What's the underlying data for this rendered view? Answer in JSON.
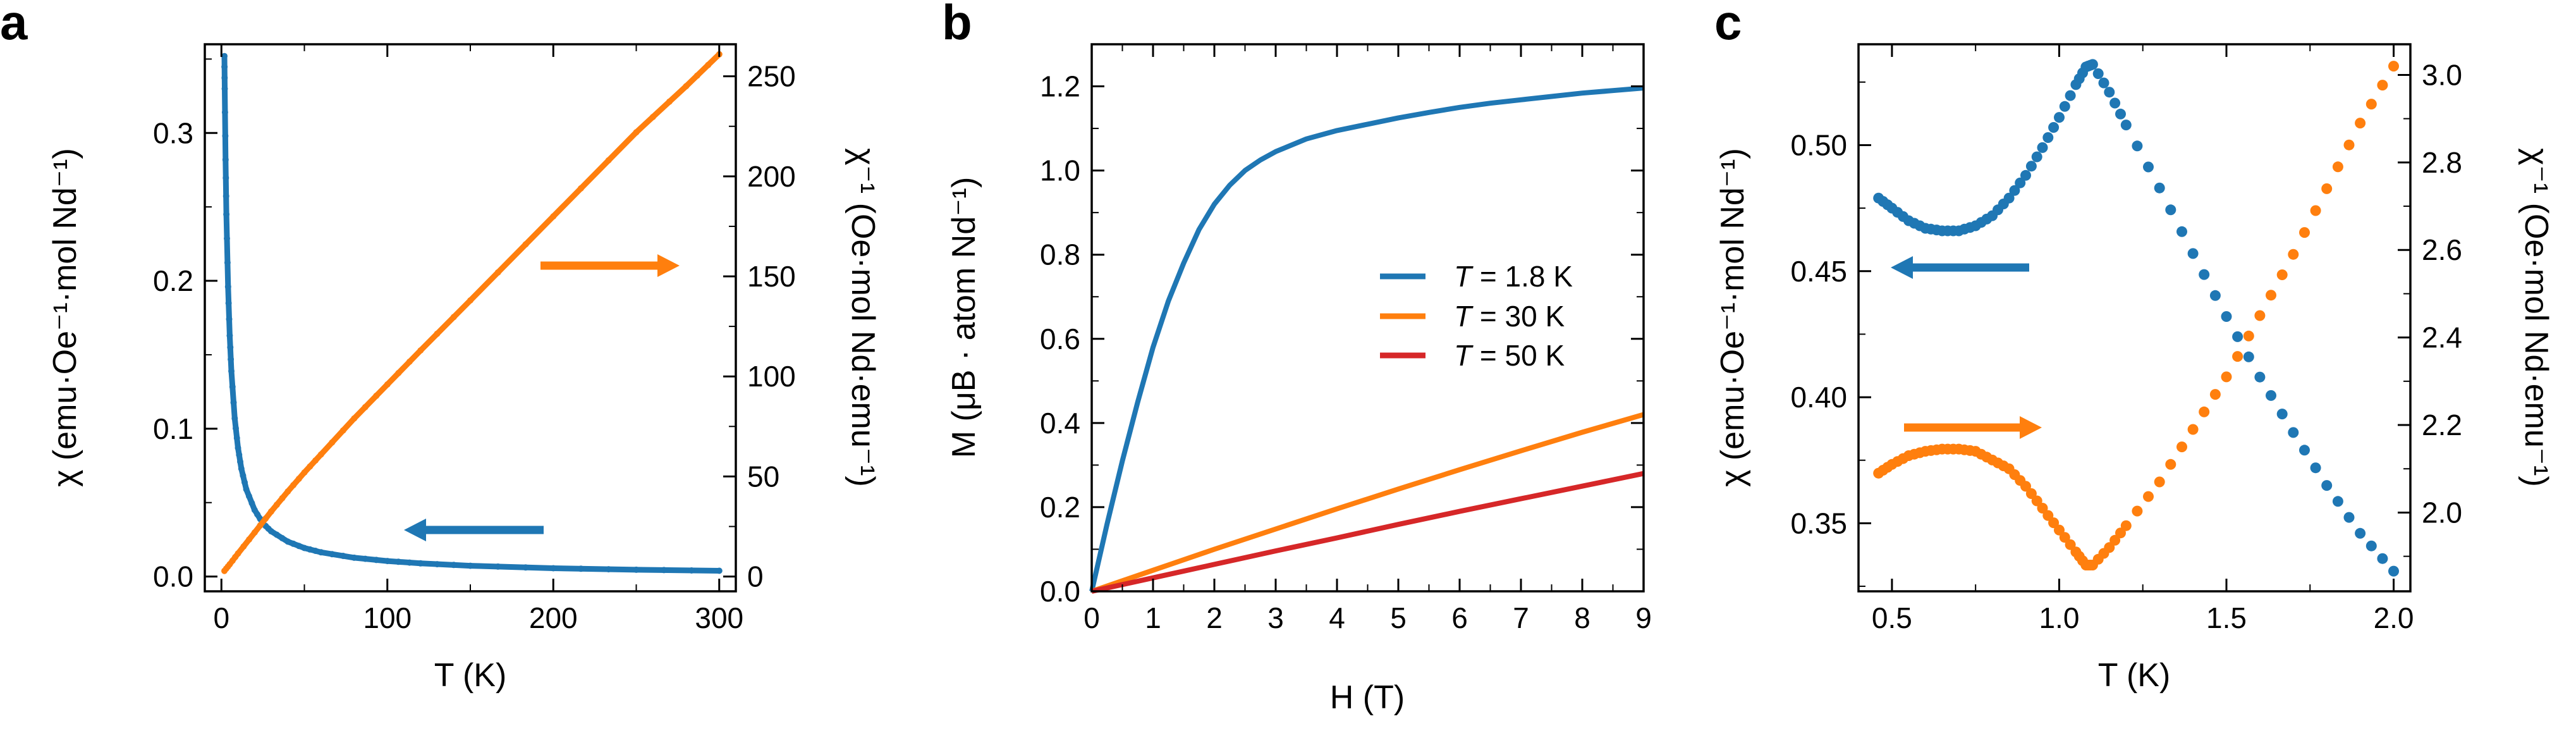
{
  "chart_data": [
    {
      "panel": "a",
      "type": "line",
      "xlabel": "T (K)",
      "ylabel": "χ (emu·Oe⁻¹·mol Nd⁻¹)",
      "ylabel_right": "χ⁻¹ (Oe·mol Nd·emu⁻¹)",
      "xlim": [
        -10,
        310
      ],
      "ylim": [
        -0.01,
        0.36
      ],
      "ylim_right": [
        -7.4,
        266
      ],
      "xticks": [
        0,
        100,
        200,
        300
      ],
      "yticks": [
        0.0,
        0.1,
        0.2,
        0.3
      ],
      "yticks_right": [
        0,
        50,
        100,
        150,
        200,
        250
      ],
      "ytick_labels": [
        "0.0",
        "0.1",
        "0.2",
        "0.3"
      ],
      "series": [
        {
          "name": "χ",
          "axis": "left",
          "color": "#1f77b4",
          "x": [
            1.8,
            2,
            2.5,
            3,
            4,
            5,
            6,
            8,
            10,
            12,
            15,
            20,
            25,
            30,
            40,
            50,
            60,
            80,
            100,
            120,
            150,
            200,
            250,
            300
          ],
          "y": [
            0.352,
            0.33,
            0.282,
            0.245,
            0.196,
            0.163,
            0.139,
            0.107,
            0.087,
            0.073,
            0.059,
            0.045,
            0.036,
            0.0306,
            0.0236,
            0.0193,
            0.0164,
            0.0127,
            0.0105,
            0.0089,
            0.0073,
            0.0056,
            0.0046,
            0.0039
          ]
        },
        {
          "name": "χ⁻¹",
          "axis": "right",
          "color": "#ff7f0e",
          "x": [
            1.8,
            5,
            10,
            20,
            30,
            40,
            50,
            60,
            80,
            100,
            120,
            150,
            200,
            250,
            280,
            300
          ],
          "y": [
            2.8,
            6.1,
            11.5,
            22,
            32.5,
            42.5,
            52,
            61,
            79,
            96,
            113,
            138,
            180,
            222,
            245,
            261
          ]
        }
      ],
      "annotations": [
        {
          "label": "arrow-right-axis",
          "points_to": "right",
          "color": "#ff7f0e"
        },
        {
          "label": "arrow-left-axis",
          "points_to": "left",
          "color": "#1f77b4"
        }
      ]
    },
    {
      "panel": "b",
      "type": "line",
      "xlabel": "H (T)",
      "ylabel": "M (μB · atom Nd⁻¹)",
      "xlim": [
        0,
        9
      ],
      "ylim": [
        0,
        1.3
      ],
      "xticks": [
        0,
        1,
        2,
        3,
        4,
        5,
        6,
        7,
        8,
        9
      ],
      "yticks": [
        0.0,
        0.2,
        0.4,
        0.6,
        0.8,
        1.0,
        1.2
      ],
      "ytick_labels": [
        "0.0",
        "0.2",
        "0.4",
        "0.6",
        "0.8",
        "1.0",
        "1.2"
      ],
      "legend": {
        "location": "center-right",
        "entries": [
          {
            "prefix": "T",
            "text": " = 1.8 K",
            "color": "#1f77b4"
          },
          {
            "prefix": "T",
            "text": " = 30 K",
            "color": "#ff7f0e"
          },
          {
            "prefix": "T",
            "text": " = 50 K",
            "color": "#d62728"
          }
        ]
      },
      "series": [
        {
          "name": "T = 1.8 K",
          "color": "#1f77b4",
          "x": [
            0,
            0.25,
            0.5,
            0.75,
            1.0,
            1.25,
            1.5,
            1.75,
            2.0,
            2.25,
            2.5,
            2.75,
            3.0,
            3.5,
            4.0,
            4.5,
            5.0,
            5.5,
            6.0,
            6.5,
            7.0,
            7.5,
            8.0,
            8.5,
            9.0
          ],
          "y": [
            0,
            0.16,
            0.31,
            0.45,
            0.58,
            0.69,
            0.78,
            0.86,
            0.92,
            0.965,
            1.0,
            1.025,
            1.045,
            1.075,
            1.095,
            1.11,
            1.125,
            1.138,
            1.15,
            1.16,
            1.168,
            1.176,
            1.184,
            1.19,
            1.196
          ]
        },
        {
          "name": "T = 30 K",
          "color": "#ff7f0e",
          "x": [
            0,
            1,
            2,
            3,
            4,
            5,
            6,
            7,
            8,
            9
          ],
          "y": [
            0,
            0.05,
            0.1,
            0.148,
            0.196,
            0.243,
            0.289,
            0.334,
            0.378,
            0.42
          ]
        },
        {
          "name": "T = 50 K",
          "color": "#d62728",
          "x": [
            0,
            1,
            2,
            3,
            4,
            5,
            6,
            7,
            8,
            9
          ],
          "y": [
            0,
            0.032,
            0.064,
            0.096,
            0.127,
            0.159,
            0.19,
            0.22,
            0.25,
            0.28
          ]
        }
      ]
    },
    {
      "panel": "c",
      "type": "scatter",
      "xlabel": "T (K)",
      "ylabel": "χ (emu·Oe⁻¹·mol Nd⁻¹)",
      "ylabel_right": "χ⁻¹ (Oe·mol Nd·emu⁻¹)",
      "xlim": [
        0.4,
        2.05
      ],
      "ylim": [
        0.323,
        0.54
      ],
      "ylim_right": [
        1.82,
        3.07
      ],
      "xticks": [
        0.5,
        1.0,
        1.5,
        2.0
      ],
      "xtick_labels": [
        "0.5",
        "1.0",
        "1.5",
        "2.0"
      ],
      "yticks": [
        0.35,
        0.4,
        0.45,
        0.5
      ],
      "ytick_labels": [
        "0.35",
        "0.40",
        "0.45",
        "0.50"
      ],
      "yticks_right": [
        2.0,
        2.2,
        2.4,
        2.6,
        2.8,
        3.0
      ],
      "ytick_labels_right": [
        "2.0",
        "2.2",
        "2.4",
        "2.6",
        "2.8",
        "3.0"
      ],
      "series": [
        {
          "name": "χ",
          "axis": "left",
          "color": "#1f77b4",
          "x": [
            0.46,
            0.5,
            0.55,
            0.6,
            0.65,
            0.7,
            0.75,
            0.8,
            0.85,
            0.9,
            0.95,
            1.0,
            1.05,
            1.08,
            1.1,
            1.15,
            1.2,
            1.3,
            1.4,
            1.5,
            1.6,
            1.7,
            1.8,
            1.9,
            2.0
          ],
          "y": [
            0.479,
            0.475,
            0.47,
            0.467,
            0.466,
            0.466,
            0.468,
            0.472,
            0.479,
            0.488,
            0.499,
            0.511,
            0.524,
            0.531,
            0.532,
            0.521,
            0.508,
            0.483,
            0.457,
            0.432,
            0.408,
            0.386,
            0.365,
            0.346,
            0.331
          ]
        },
        {
          "name": "χ⁻¹",
          "axis": "right",
          "color": "#ff7f0e",
          "x": [
            0.46,
            0.5,
            0.55,
            0.6,
            0.65,
            0.7,
            0.75,
            0.8,
            0.85,
            0.9,
            0.95,
            1.0,
            1.05,
            1.08,
            1.1,
            1.15,
            1.2,
            1.3,
            1.4,
            1.5,
            1.6,
            1.7,
            1.8,
            1.9,
            2.0
          ],
          "y": [
            2.09,
            2.11,
            2.13,
            2.14,
            2.145,
            2.145,
            2.14,
            2.12,
            2.1,
            2.06,
            2.01,
            1.96,
            1.91,
            1.88,
            1.88,
            1.92,
            1.97,
            2.07,
            2.19,
            2.31,
            2.45,
            2.59,
            2.74,
            2.89,
            3.02
          ]
        }
      ],
      "annotations": [
        {
          "label": "arrow-left-axis",
          "points_to": "left",
          "color": "#1f77b4"
        },
        {
          "label": "arrow-right-axis",
          "points_to": "right",
          "color": "#ff7f0e"
        }
      ]
    }
  ]
}
